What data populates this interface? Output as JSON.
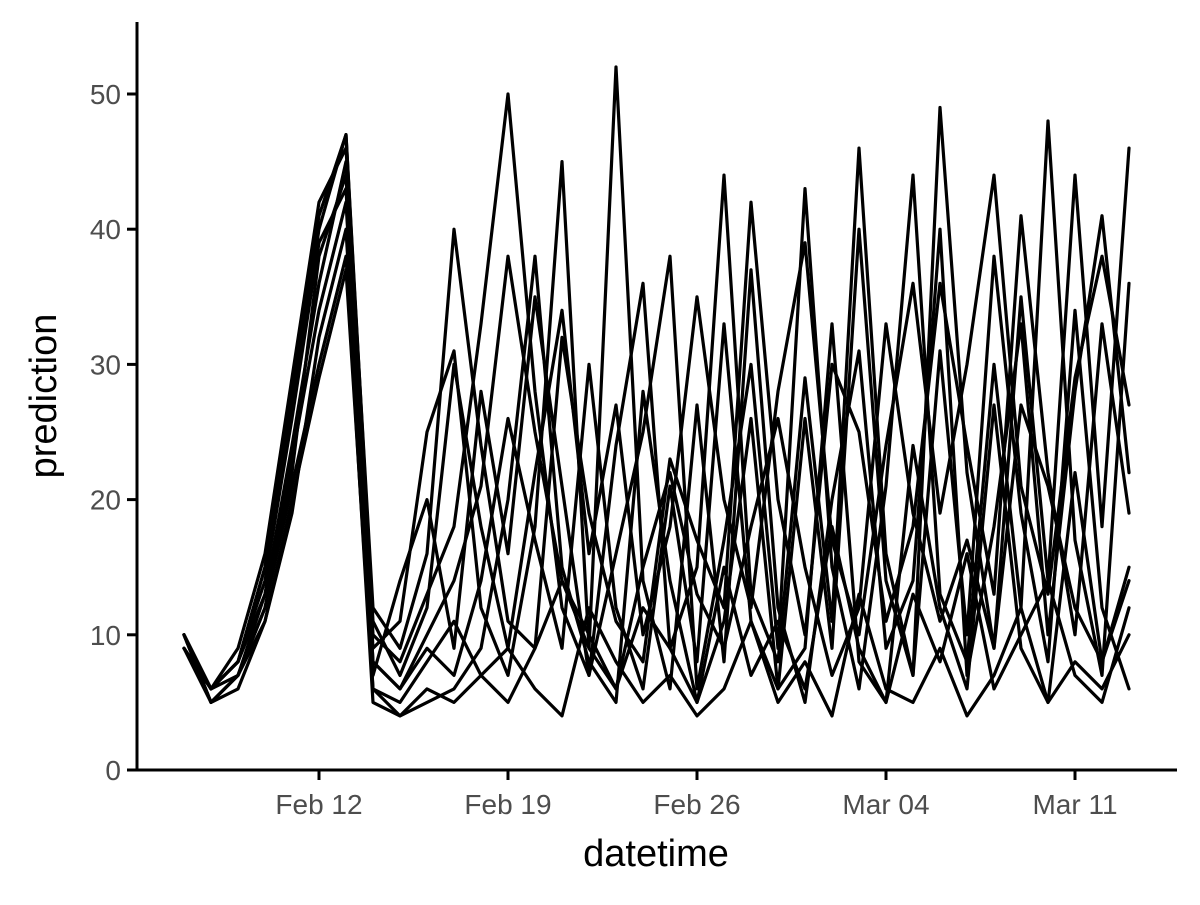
{
  "chart_data": {
    "type": "line",
    "title": "",
    "xlabel": "datetime",
    "ylabel": "prediction",
    "x_axis_type": "date",
    "x_range": [
      "2024-02-05",
      "2024-03-13"
    ],
    "x_ticks": [
      {
        "date": "2024-02-12",
        "label": "Feb 12"
      },
      {
        "date": "2024-02-19",
        "label": "Feb 19"
      },
      {
        "date": "2024-02-26",
        "label": "Feb 26"
      },
      {
        "date": "2024-03-04",
        "label": "Mar 04"
      },
      {
        "date": "2024-03-11",
        "label": "Mar 11"
      }
    ],
    "ylim": [
      0,
      55
    ],
    "y_ticks": [
      0,
      10,
      20,
      30,
      40,
      50
    ],
    "grid": false,
    "legend": "none",
    "line_color": "#000000",
    "series": [
      {
        "x": [
          "2024-02-07",
          "2024-02-08",
          "2024-02-09",
          "2024-02-10",
          "2024-02-11",
          "2024-02-12",
          "2024-02-13",
          "2024-02-14",
          "2024-02-15",
          "2024-02-16",
          "2024-02-17",
          "2024-02-18",
          "2024-02-19",
          "2024-02-20",
          "2024-02-21",
          "2024-02-22",
          "2024-02-23",
          "2024-02-24",
          "2024-02-25",
          "2024-02-26",
          "2024-02-27",
          "2024-02-28",
          "2024-02-29",
          "2024-03-01",
          "2024-03-02",
          "2024-03-03",
          "2024-03-04",
          "2024-03-05",
          "2024-03-06",
          "2024-03-07",
          "2024-03-08",
          "2024-03-09",
          "2024-03-10",
          "2024-03-11",
          "2024-03-12",
          "2024-03-13"
        ],
        "y": [
          10,
          5,
          7,
          12,
          22,
          38,
          44,
          8,
          6,
          9,
          7,
          14,
          26,
          17,
          9,
          30,
          12,
          6,
          21,
          8,
          33,
          11,
          6,
          26,
          9,
          40,
          14,
          7,
          31,
          10,
          38,
          19,
          8,
          34,
          12,
          6
        ]
      },
      {
        "x": [
          "2024-02-07",
          "2024-02-08",
          "2024-02-09",
          "2024-02-10",
          "2024-02-11",
          "2024-02-12",
          "2024-02-13",
          "2024-02-14",
          "2024-02-15",
          "2024-02-16",
          "2024-02-17",
          "2024-02-18",
          "2024-02-19",
          "2024-02-20",
          "2024-02-21",
          "2024-02-22",
          "2024-02-23",
          "2024-02-24",
          "2024-02-25",
          "2024-02-26",
          "2024-02-27",
          "2024-02-28",
          "2024-02-29",
          "2024-03-01",
          "2024-03-02",
          "2024-03-03",
          "2024-03-04",
          "2024-03-05",
          "2024-03-06",
          "2024-03-07",
          "2024-03-08",
          "2024-03-09",
          "2024-03-10",
          "2024-03-11",
          "2024-03-12",
          "2024-03-13"
        ],
        "y": [
          9,
          6,
          8,
          15,
          28,
          41,
          47,
          10,
          8,
          13,
          18,
          33,
          50,
          28,
          12,
          7,
          24,
          36,
          9,
          15,
          44,
          13,
          8,
          29,
          11,
          46,
          16,
          7,
          49,
          22,
          9,
          35,
          14,
          44,
          18,
          46
        ]
      },
      {
        "x": [
          "2024-02-07",
          "2024-02-08",
          "2024-02-09",
          "2024-02-10",
          "2024-02-11",
          "2024-02-12",
          "2024-02-13",
          "2024-02-14",
          "2024-02-15",
          "2024-02-16",
          "2024-02-17",
          "2024-02-18",
          "2024-02-19",
          "2024-02-20",
          "2024-02-21",
          "2024-02-22",
          "2024-02-23",
          "2024-02-24",
          "2024-02-25",
          "2024-02-26",
          "2024-02-27",
          "2024-02-28",
          "2024-02-29",
          "2024-03-01",
          "2024-03-02",
          "2024-03-03",
          "2024-03-04",
          "2024-03-05",
          "2024-03-06",
          "2024-03-07",
          "2024-03-08",
          "2024-03-09",
          "2024-03-10",
          "2024-03-11",
          "2024-03-12",
          "2024-03-13"
        ],
        "y": [
          10,
          5,
          6,
          11,
          19,
          32,
          40,
          6,
          4,
          5,
          6,
          9,
          20,
          38,
          15,
          8,
          5,
          28,
          14,
          5,
          11,
          26,
          6,
          9,
          33,
          8,
          5,
          24,
          12,
          6,
          27,
          9,
          5,
          22,
          8,
          15
        ]
      },
      {
        "x": [
          "2024-02-07",
          "2024-02-08",
          "2024-02-09",
          "2024-02-10",
          "2024-02-11",
          "2024-02-12",
          "2024-02-13",
          "2024-02-14",
          "2024-02-15",
          "2024-02-16",
          "2024-02-17",
          "2024-02-18",
          "2024-02-19",
          "2024-02-20",
          "2024-02-21",
          "2024-02-22",
          "2024-02-23",
          "2024-02-24",
          "2024-02-25",
          "2024-02-26",
          "2024-02-27",
          "2024-02-28",
          "2024-02-29",
          "2024-03-01",
          "2024-03-02",
          "2024-03-03",
          "2024-03-04",
          "2024-03-05",
          "2024-03-06",
          "2024-03-07",
          "2024-03-08",
          "2024-03-09",
          "2024-03-10",
          "2024-03-11",
          "2024-03-12",
          "2024-03-13"
        ],
        "y": [
          9,
          6,
          7,
          13,
          24,
          36,
          45,
          9,
          11,
          25,
          31,
          12,
          7,
          18,
          45,
          9,
          52,
          14,
          6,
          27,
          8,
          37,
          12,
          5,
          20,
          31,
          9,
          14,
          40,
          7,
          18,
          33,
          10,
          28,
          41,
          22
        ]
      },
      {
        "x": [
          "2024-02-07",
          "2024-02-08",
          "2024-02-09",
          "2024-02-10",
          "2024-02-11",
          "2024-02-12",
          "2024-02-13",
          "2024-02-14",
          "2024-02-15",
          "2024-02-16",
          "2024-02-17",
          "2024-02-18",
          "2024-02-19",
          "2024-02-20",
          "2024-02-21",
          "2024-02-22",
          "2024-02-23",
          "2024-02-24",
          "2024-02-25",
          "2024-02-26",
          "2024-02-27",
          "2024-02-28",
          "2024-02-29",
          "2024-03-01",
          "2024-03-02",
          "2024-03-03",
          "2024-03-04",
          "2024-03-05",
          "2024-03-06",
          "2024-03-07",
          "2024-03-08",
          "2024-03-09",
          "2024-03-10",
          "2024-03-11",
          "2024-03-12",
          "2024-03-13"
        ],
        "y": [
          10,
          6,
          8,
          14,
          26,
          39,
          43,
          7,
          14,
          20,
          9,
          28,
          16,
          35,
          21,
          7,
          16,
          25,
          38,
          6,
          17,
          30,
          9,
          43,
          15,
          6,
          21,
          44,
          13,
          8,
          30,
          12,
          48,
          17,
          7,
          36
        ]
      },
      {
        "x": [
          "2024-02-07",
          "2024-02-08",
          "2024-02-09",
          "2024-02-10",
          "2024-02-11",
          "2024-02-12",
          "2024-02-13",
          "2024-02-14",
          "2024-02-15",
          "2024-02-16",
          "2024-02-17",
          "2024-02-18",
          "2024-02-19",
          "2024-02-20",
          "2024-02-21",
          "2024-02-22",
          "2024-02-23",
          "2024-02-24",
          "2024-02-25",
          "2024-02-26",
          "2024-02-27",
          "2024-02-28",
          "2024-02-29",
          "2024-03-01",
          "2024-03-02",
          "2024-03-03",
          "2024-03-04",
          "2024-03-05",
          "2024-03-06",
          "2024-03-07",
          "2024-03-08",
          "2024-03-09",
          "2024-03-10",
          "2024-03-11",
          "2024-03-12",
          "2024-03-13"
        ],
        "y": [
          9,
          5,
          7,
          12,
          21,
          30,
          38,
          5,
          4,
          6,
          5,
          7,
          9,
          6,
          4,
          12,
          8,
          5,
          7,
          4,
          6,
          11,
          5,
          8,
          4,
          13,
          6,
          5,
          9,
          4,
          7,
          12,
          5,
          8,
          6,
          10
        ]
      },
      {
        "x": [
          "2024-02-07",
          "2024-02-08",
          "2024-02-09",
          "2024-02-10",
          "2024-02-11",
          "2024-02-12",
          "2024-02-13",
          "2024-02-14",
          "2024-02-15",
          "2024-02-16",
          "2024-02-17",
          "2024-02-18",
          "2024-02-19",
          "2024-02-20",
          "2024-02-21",
          "2024-02-22",
          "2024-02-23",
          "2024-02-24",
          "2024-02-25",
          "2024-02-26",
          "2024-02-27",
          "2024-02-28",
          "2024-02-29",
          "2024-03-01",
          "2024-03-02",
          "2024-03-03",
          "2024-03-04",
          "2024-03-05",
          "2024-03-06",
          "2024-03-07",
          "2024-03-08",
          "2024-03-09",
          "2024-03-10",
          "2024-03-11",
          "2024-03-12",
          "2024-03-13"
        ],
        "y": [
          10,
          6,
          9,
          16,
          29,
          42,
          46,
          12,
          9,
          16,
          40,
          24,
          11,
          9,
          32,
          19,
          11,
          8,
          23,
          17,
          12,
          42,
          20,
          10,
          30,
          25,
          11,
          18,
          36,
          24,
          13,
          41,
          22,
          10,
          33,
          19
        ]
      },
      {
        "x": [
          "2024-02-07",
          "2024-02-08",
          "2024-02-09",
          "2024-02-10",
          "2024-02-11",
          "2024-02-12",
          "2024-02-13",
          "2024-02-14",
          "2024-02-15",
          "2024-02-16",
          "2024-02-17",
          "2024-02-18",
          "2024-02-19",
          "2024-02-20",
          "2024-02-21",
          "2024-02-22",
          "2024-02-23",
          "2024-02-24",
          "2024-02-25",
          "2024-02-26",
          "2024-02-27",
          "2024-02-28",
          "2024-02-29",
          "2024-03-01",
          "2024-03-02",
          "2024-03-03",
          "2024-03-04",
          "2024-03-05",
          "2024-03-06",
          "2024-03-07",
          "2024-03-08",
          "2024-03-09",
          "2024-03-10",
          "2024-03-11",
          "2024-03-12",
          "2024-03-13"
        ],
        "y": [
          9,
          6,
          8,
          13,
          23,
          34,
          42,
          8,
          6,
          10,
          14,
          21,
          38,
          25,
          14,
          9,
          6,
          15,
          22,
          13,
          9,
          18,
          26,
          15,
          7,
          12,
          33,
          19,
          11,
          17,
          9,
          27,
          21,
          12,
          8,
          14
        ]
      },
      {
        "x": [
          "2024-02-07",
          "2024-02-08",
          "2024-02-09",
          "2024-02-10",
          "2024-02-11",
          "2024-02-12",
          "2024-02-13",
          "2024-02-14",
          "2024-02-15",
          "2024-02-16",
          "2024-02-17",
          "2024-02-18",
          "2024-02-19",
          "2024-02-20",
          "2024-02-21",
          "2024-02-22",
          "2024-02-23",
          "2024-02-24",
          "2024-02-25",
          "2024-02-26",
          "2024-02-27",
          "2024-02-28",
          "2024-02-29",
          "2024-03-01",
          "2024-03-02",
          "2024-03-03",
          "2024-03-04",
          "2024-03-05",
          "2024-03-06",
          "2024-03-07",
          "2024-03-08",
          "2024-03-09",
          "2024-03-10",
          "2024-03-11",
          "2024-03-12",
          "2024-03-13"
        ],
        "y": [
          10,
          5,
          7,
          11,
          20,
          29,
          37,
          6,
          5,
          8,
          11,
          7,
          5,
          9,
          14,
          10,
          6,
          12,
          9,
          5,
          15,
          7,
          11,
          6,
          18,
          9,
          5,
          13,
          8,
          16,
          6,
          10,
          14,
          7,
          5,
          12
        ]
      },
      {
        "x": [
          "2024-02-07",
          "2024-02-08",
          "2024-02-09",
          "2024-02-10",
          "2024-02-11",
          "2024-02-12",
          "2024-02-13",
          "2024-02-14",
          "2024-02-15",
          "2024-02-16",
          "2024-02-17",
          "2024-02-18",
          "2024-02-19",
          "2024-02-20",
          "2024-02-21",
          "2024-02-22",
          "2024-02-23",
          "2024-02-24",
          "2024-02-25",
          "2024-02-26",
          "2024-02-27",
          "2024-02-28",
          "2024-02-29",
          "2024-03-01",
          "2024-03-02",
          "2024-03-03",
          "2024-03-04",
          "2024-03-05",
          "2024-03-06",
          "2024-03-07",
          "2024-03-08",
          "2024-03-09",
          "2024-03-10",
          "2024-03-11",
          "2024-03-12",
          "2024-03-13"
        ],
        "y": [
          10,
          6,
          8,
          15,
          27,
          40,
          47,
          11,
          7,
          12,
          30,
          18,
          9,
          22,
          34,
          16,
          27,
          10,
          18,
          35,
          20,
          12,
          28,
          39,
          17,
          10,
          24,
          36,
          19,
          30,
          44,
          21,
          13,
          29,
          38,
          27
        ]
      }
    ]
  }
}
